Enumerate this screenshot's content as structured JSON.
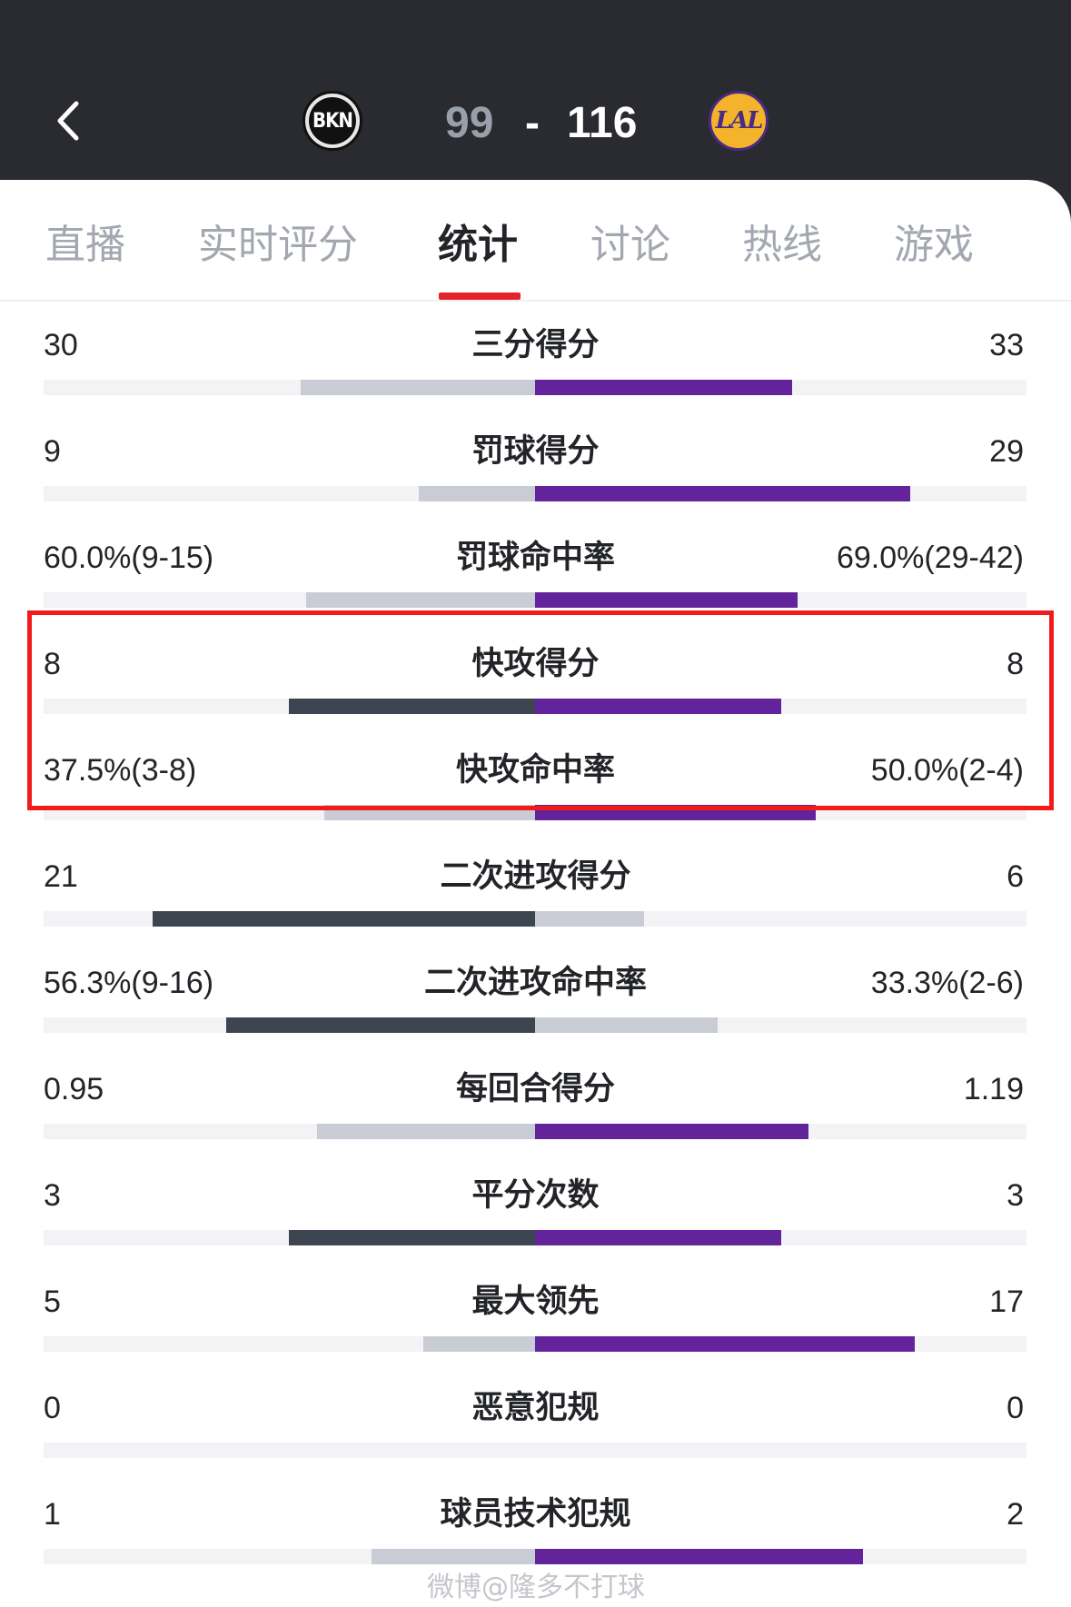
{
  "header": {
    "home_logo_text": "BKN",
    "away_logo_text": "LAL",
    "home_score": "99",
    "dash": "-",
    "away_score": "116"
  },
  "tabs": [
    {
      "label": "直播"
    },
    {
      "label": "实时评分"
    },
    {
      "label": "统计"
    },
    {
      "label": "讨论"
    },
    {
      "label": "热线"
    },
    {
      "label": "游戏"
    }
  ],
  "active_tab": "统计",
  "colors": {
    "home_dark": "#3d4551",
    "neutral_light": "#c9ccd4",
    "away_purple": "#63239a",
    "active_tab_underline": "#e4242b",
    "highlight_box": "#f21b1b"
  },
  "stats": [
    {
      "label": "三分得分",
      "home": "30",
      "away": "33",
      "home_ratio": 0.476,
      "away_ratio": 0.524,
      "leader": "away"
    },
    {
      "label": "罚球得分",
      "home": "9",
      "away": "29",
      "home_ratio": 0.237,
      "away_ratio": 0.763,
      "leader": "away"
    },
    {
      "label": "罚球命中率",
      "home": "60.0%(9-15)",
      "away": "69.0%(29-42)",
      "home_ratio": 0.465,
      "away_ratio": 0.535,
      "leader": "away"
    },
    {
      "label": "快攻得分",
      "home": "8",
      "away": "8",
      "home_ratio": 0.5,
      "away_ratio": 0.5,
      "leader": "tie"
    },
    {
      "label": "快攻命中率",
      "home": "37.5%(3-8)",
      "away": "50.0%(2-4)",
      "home_ratio": 0.429,
      "away_ratio": 0.571,
      "leader": "away"
    },
    {
      "label": "二次进攻得分",
      "home": "21",
      "away": "6",
      "home_ratio": 0.778,
      "away_ratio": 0.222,
      "leader": "home"
    },
    {
      "label": "二次进攻命中率",
      "home": "56.3%(9-16)",
      "away": "33.3%(2-6)",
      "home_ratio": 0.628,
      "away_ratio": 0.372,
      "leader": "home"
    },
    {
      "label": "每回合得分",
      "home": "0.95",
      "away": "1.19",
      "home_ratio": 0.444,
      "away_ratio": 0.556,
      "leader": "away"
    },
    {
      "label": "平分次数",
      "home": "3",
      "away": "3",
      "home_ratio": 0.5,
      "away_ratio": 0.5,
      "leader": "tie"
    },
    {
      "label": "最大领先",
      "home": "5",
      "away": "17",
      "home_ratio": 0.227,
      "away_ratio": 0.773,
      "leader": "away"
    },
    {
      "label": "恶意犯规",
      "home": "0",
      "away": "0",
      "home_ratio": 0,
      "away_ratio": 0,
      "leader": "none"
    },
    {
      "label": "球员技术犯规",
      "home": "1",
      "away": "2",
      "home_ratio": 0.333,
      "away_ratio": 0.667,
      "leader": "away"
    }
  ],
  "watermark": "微博@隆多不打球"
}
